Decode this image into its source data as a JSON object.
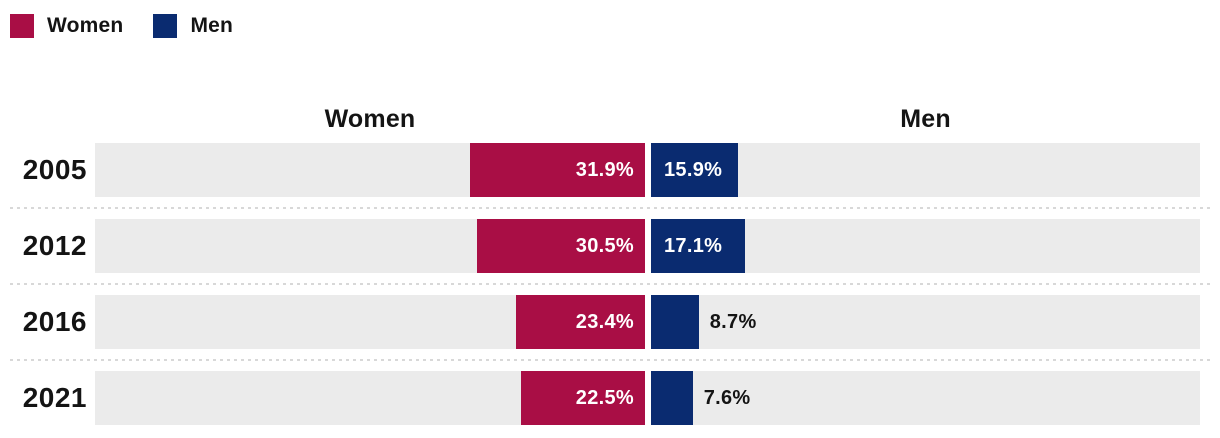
{
  "legend": {
    "items": [
      {
        "label": "Women",
        "color": "#A90E45"
      },
      {
        "label": "Men",
        "color": "#0A2B70"
      }
    ]
  },
  "column_headers": {
    "left": "Women",
    "right": "Men"
  },
  "chart_data": {
    "type": "bar",
    "variant": "diverging-butterfly",
    "title": "",
    "categories": [
      "2005",
      "2012",
      "2016",
      "2021"
    ],
    "series": [
      {
        "name": "Women",
        "side": "left",
        "color": "#A90E45",
        "values": [
          31.9,
          30.5,
          23.4,
          22.5
        ],
        "labels": [
          "31.9%",
          "30.5%",
          "23.4%",
          "22.5%"
        ],
        "label_inside": [
          true,
          true,
          true,
          true
        ]
      },
      {
        "name": "Men",
        "side": "right",
        "color": "#0A2B70",
        "values": [
          15.9,
          17.1,
          8.7,
          7.6
        ],
        "labels": [
          "15.9%",
          "17.1%",
          "8.7%",
          "7.6%"
        ],
        "label_inside": [
          true,
          true,
          false,
          false
        ]
      }
    ],
    "axis_max": 100,
    "grid": false,
    "legend_position": "top-left",
    "track_color": "#EBEBEB",
    "separator_color": "#D8D8D8",
    "label_color_inside": "#FFFFFF",
    "label_color_outside": "#141414"
  }
}
